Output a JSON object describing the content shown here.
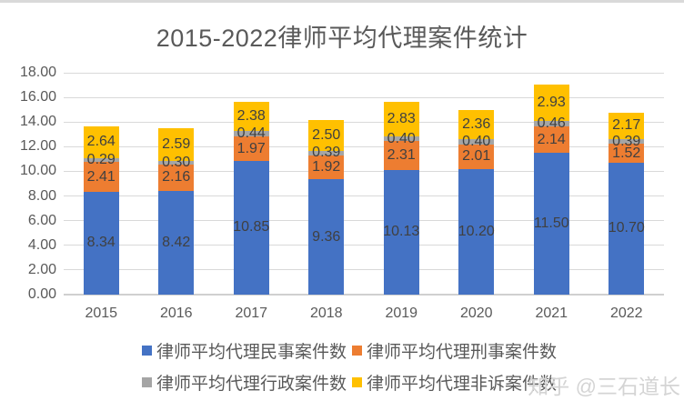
{
  "page": {
    "background": "#ffffff",
    "top_strip_color": "#d9d9d9"
  },
  "watermark": "知乎 @三石道长",
  "chart_data": {
    "type": "bar",
    "stacked": true,
    "title": "2015-2022律师平均代理案件统计",
    "categories": [
      "2015",
      "2016",
      "2017",
      "2018",
      "2019",
      "2020",
      "2021",
      "2022"
    ],
    "series": [
      {
        "name": "律师平均代理民事案件数",
        "color": "#4472C4",
        "values": [
          8.34,
          8.42,
          10.85,
          9.36,
          10.13,
          10.2,
          11.5,
          10.7
        ]
      },
      {
        "name": "律师平均代理刑事案件数",
        "color": "#ED7D31",
        "values": [
          2.41,
          2.16,
          1.97,
          1.92,
          2.31,
          2.01,
          2.14,
          1.52
        ]
      },
      {
        "name": "律师平均代理行政案件数",
        "color": "#A5A5A5",
        "values": [
          0.29,
          0.3,
          0.44,
          0.39,
          0.4,
          0.4,
          0.46,
          0.39
        ]
      },
      {
        "name": "律师平均代理非诉案件数",
        "color": "#FFC000",
        "values": [
          2.64,
          2.59,
          2.38,
          2.5,
          2.83,
          2.36,
          2.93,
          2.17
        ]
      }
    ],
    "ylim": [
      0,
      18
    ],
    "ytick_step": 2,
    "ytick_decimals": 2,
    "data_label_decimals": 2,
    "grid": true,
    "legend_position": "bottom",
    "title_color": "#595959",
    "axis_label_color": "#595959",
    "data_label_color": "#404040",
    "legend_label_color": "#595959",
    "gridline_color": "#D9D9D9",
    "axis_line_color": "#D0D0D0"
  }
}
